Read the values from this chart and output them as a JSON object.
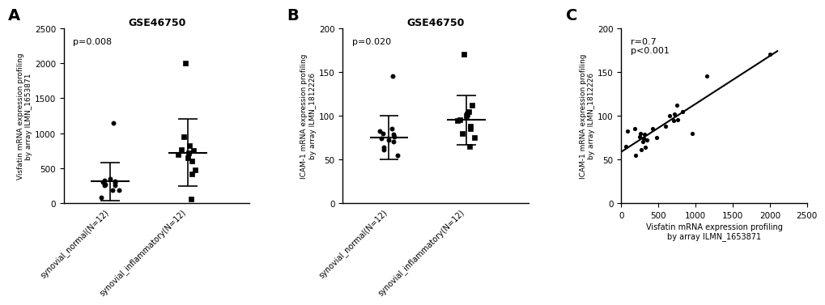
{
  "panel_A": {
    "title": "GSE46750",
    "ylabel_line1": "Visfatin mRNA expression profiling",
    "ylabel_line2": "by array ILMN_1653871",
    "pvalue": "p=0.008",
    "ylim": [
      0,
      2500
    ],
    "yticks": [
      0,
      500,
      1000,
      1500,
      2000,
      2500
    ],
    "group1_label": "synovial_normal(N=12)",
    "group2_label": "synovial_inflammatory(N=12)",
    "group1_data": [
      250,
      80,
      180,
      310,
      350,
      270,
      320,
      290,
      260,
      300,
      1150,
      190
    ],
    "group2_data": [
      700,
      650,
      750,
      820,
      600,
      950,
      480,
      420,
      720,
      760,
      2000,
      60
    ],
    "group1_mean": 310,
    "group1_sd": 270,
    "group2_mean": 720,
    "group2_sd": 480,
    "dot_color": "#000000",
    "marker1": "o",
    "marker2": "s"
  },
  "panel_B": {
    "title": "GSE46750",
    "ylabel_line1": "ICAM-1 mRNA expression profiling",
    "ylabel_line2": "by array ILMN_1812226",
    "pvalue": "p=0.020",
    "ylim": [
      0,
      200
    ],
    "yticks": [
      0,
      50,
      100,
      150,
      200
    ],
    "group1_label": "synovial_normal(N=12)",
    "group2_label": "synovial_inflammatory(N=12)",
    "group1_data": [
      76,
      82,
      85,
      79,
      72,
      61,
      64,
      70,
      80,
      74,
      145,
      55
    ],
    "group2_data": [
      94,
      100,
      112,
      105,
      88,
      80,
      75,
      85,
      102,
      95,
      170,
      65
    ],
    "group1_mean": 75,
    "group1_sd": 25,
    "group2_mean": 95,
    "group2_sd": 28,
    "dot_color": "#000000",
    "marker1": "o",
    "marker2": "s"
  },
  "panel_C": {
    "xlabel_line1": "Visfatin mRNA expression profiling",
    "xlabel_line2": "by array ILMN_1653871",
    "ylabel_line1": "ICAM-1 mRNA expression profiling",
    "ylabel_line2": "by array ILMN_1812226",
    "annotation_line1": "r=0.7",
    "annotation_line2": "p<0.001",
    "xlim": [
      0,
      2500
    ],
    "ylim": [
      0,
      200
    ],
    "xticks": [
      0,
      500,
      1000,
      1500,
      2000,
      2500
    ],
    "yticks": [
      0,
      50,
      100,
      150,
      200
    ],
    "x_data": [
      250,
      80,
      180,
      310,
      350,
      270,
      320,
      290,
      260,
      300,
      1150,
      190,
      700,
      650,
      750,
      820,
      600,
      950,
      480,
      420,
      720,
      760,
      2000,
      60
    ],
    "y_data": [
      76,
      82,
      85,
      79,
      72,
      61,
      64,
      70,
      80,
      74,
      145,
      55,
      94,
      100,
      112,
      105,
      88,
      80,
      75,
      85,
      102,
      95,
      170,
      65
    ],
    "dot_color": "#000000",
    "line_color": "#000000"
  },
  "bg_color": "#ffffff",
  "font_color": "#000000"
}
